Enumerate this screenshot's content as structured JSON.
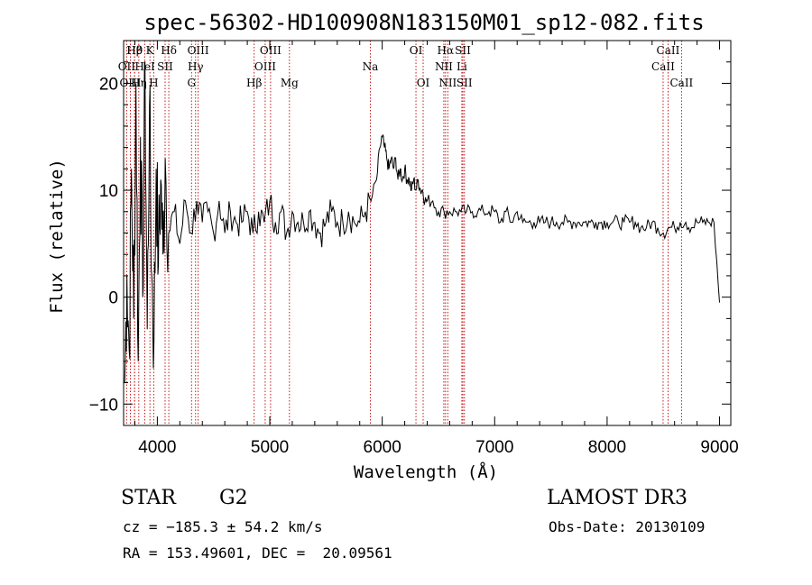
{
  "chart_data": {
    "type": "line",
    "title": "spec-56302-HD100908N183150M01_sp12-082.fits",
    "xlabel": "Wavelength (Å)",
    "ylabel": "Flux (relative)",
    "xlim": [
      3700,
      9100
    ],
    "ylim": [
      -12,
      24
    ],
    "x_ticks": [
      4000,
      5000,
      6000,
      7000,
      8000,
      9000
    ],
    "y_ticks": [
      -10,
      0,
      10,
      20
    ],
    "grid": false,
    "series": [
      {
        "name": "flux",
        "x": [
          3710,
          3730,
          3750,
          3770,
          3790,
          3810,
          3830,
          3850,
          3870,
          3890,
          3910,
          3930,
          3950,
          3970,
          3990,
          4010,
          4030,
          4050,
          4070,
          4100,
          4150,
          4200,
          4250,
          4300,
          4350,
          4400,
          4450,
          4500,
          4550,
          4600,
          4650,
          4700,
          4750,
          4800,
          4850,
          4900,
          4950,
          5000,
          5050,
          5100,
          5150,
          5200,
          5250,
          5300,
          5350,
          5400,
          5450,
          5500,
          5550,
          5600,
          5650,
          5700,
          5750,
          5800,
          5850,
          5900,
          5950,
          5980,
          6000,
          6020,
          6040,
          6060,
          6080,
          6100,
          6120,
          6140,
          6160,
          6180,
          6200,
          6220,
          6240,
          6260,
          6280,
          6300,
          6320,
          6340,
          6360,
          6380,
          6400,
          6450,
          6500,
          6550,
          6600,
          6650,
          6700,
          6750,
          6800,
          6850,
          6900,
          6950,
          7000,
          7050,
          7100,
          7150,
          7200,
          7250,
          7300,
          7350,
          7400,
          7450,
          7500,
          7550,
          7600,
          7650,
          7700,
          7750,
          7800,
          7850,
          7900,
          7950,
          8000,
          8050,
          8100,
          8150,
          8200,
          8250,
          8300,
          8350,
          8400,
          8450,
          8500,
          8550,
          8600,
          8650,
          8700,
          8750,
          8800,
          8850,
          8900,
          8950,
          9000
        ],
        "y": [
          -8,
          2,
          -5,
          12,
          -2,
          20,
          -6,
          15,
          0,
          22,
          -3,
          18,
          2,
          -4,
          12,
          3,
          11,
          4,
          13,
          6,
          8,
          5,
          9,
          6,
          9,
          7,
          8,
          6,
          9,
          6,
          8,
          7,
          7,
          8,
          6,
          8,
          7,
          9,
          7,
          8,
          6,
          8,
          7,
          7,
          8,
          7,
          6,
          7,
          8,
          7,
          7,
          8,
          7,
          7,
          8,
          9,
          11,
          14,
          15,
          14,
          13,
          12,
          13,
          12,
          13,
          11,
          12,
          11,
          12,
          11,
          11,
          10,
          11,
          10,
          11,
          10,
          10,
          9,
          9,
          9,
          8,
          8,
          8,
          8,
          8,
          8,
          8,
          8,
          8,
          8,
          8,
          7,
          8,
          7,
          8,
          7,
          7,
          7,
          7,
          7,
          7,
          7,
          7,
          7,
          7,
          7,
          7,
          7,
          7,
          7,
          7,
          7,
          7,
          7,
          7,
          7,
          6.5,
          6.5,
          7,
          6.5,
          6,
          6.5,
          6.5,
          7,
          7,
          6.5,
          7,
          7,
          7,
          7,
          -0.5
        ]
      }
    ],
    "lines": [
      {
        "label": "Hβ",
        "wl": 3797,
        "row": 0
      },
      {
        "label": "OII",
        "wl": 3727,
        "row": 1
      },
      {
        "label": "OIII",
        "wl": 3760,
        "row": 2
      },
      {
        "label": "Hθ",
        "wl": 3798,
        "row": 0
      },
      {
        "label": "Hη",
        "wl": 3835,
        "row": 2
      },
      {
        "label": "K",
        "wl": 3934,
        "row": 0
      },
      {
        "label": "HeI",
        "wl": 3889,
        "row": 1
      },
      {
        "label": "H",
        "wl": 3968,
        "row": 2
      },
      {
        "label": "Hδ",
        "wl": 4102,
        "row": 0
      },
      {
        "label": "SII",
        "wl": 4069,
        "row": 1
      },
      {
        "label": "OIII",
        "wl": 4363,
        "row": 0
      },
      {
        "label": "Hγ",
        "wl": 4340,
        "row": 1
      },
      {
        "label": "G",
        "wl": 4304,
        "row": 2
      },
      {
        "label": "Hβ",
        "wl": 4861,
        "row": 2
      },
      {
        "label": "OIII",
        "wl": 5007,
        "row": 0
      },
      {
        "label": "OIII",
        "wl": 4959,
        "row": 1
      },
      {
        "label": "Mg",
        "wl": 5175,
        "row": 2
      },
      {
        "label": "Na",
        "wl": 5894,
        "row": 1
      },
      {
        "label": "OI",
        "wl": 6300,
        "row": 0
      },
      {
        "label": "OI",
        "wl": 6364,
        "row": 2
      },
      {
        "label": "Hα",
        "wl": 6563,
        "row": 0
      },
      {
        "label": "NII",
        "wl": 6548,
        "row": 1
      },
      {
        "label": "NII",
        "wl": 6583,
        "row": 2
      },
      {
        "label": "SII",
        "wl": 6717,
        "row": 0
      },
      {
        "label": "Li",
        "wl": 6708,
        "row": 1
      },
      {
        "label": "SII",
        "wl": 6731,
        "row": 2
      },
      {
        "label": "CaII",
        "wl": 8542,
        "row": 0
      },
      {
        "label": "CaII",
        "wl": 8498,
        "row": 1
      },
      {
        "label": "CaII",
        "wl": 8662,
        "row": 2
      }
    ]
  },
  "info": {
    "object_class": "STAR",
    "subclass": "G2",
    "survey": "LAMOST DR3",
    "cz": "cz = −185.3 ± 54.2 km/s",
    "obs_date": "Obs-Date: 20130109",
    "coords": "RA = 153.49601, DEC =  20.09561"
  }
}
